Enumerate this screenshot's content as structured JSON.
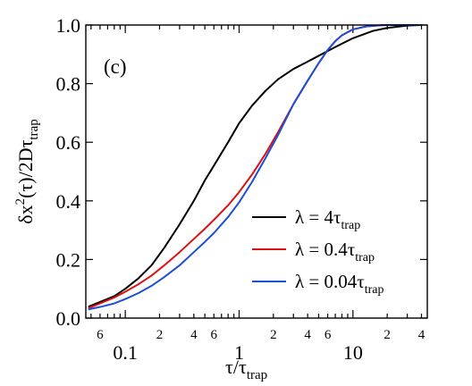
{
  "chart_data": {
    "type": "line",
    "x_scale": "log",
    "xlim": [
      0.045,
      45
    ],
    "ylim": [
      0,
      1.0
    ],
    "panel_label": "(c)",
    "xlabel": {
      "base": "τ",
      "sep": "/",
      "main": "τ",
      "sub": "trap"
    },
    "ylabel": {
      "pre": "δx",
      "sup": "2",
      "mid": "(τ)/2Dτ",
      "sub": "trap"
    },
    "y_ticks": [
      {
        "value": 0.0,
        "label": "0.0"
      },
      {
        "value": 0.2,
        "label": "0.2"
      },
      {
        "value": 0.4,
        "label": "0.4"
      },
      {
        "value": 0.6,
        "label": "0.6"
      },
      {
        "value": 0.8,
        "label": "0.8"
      },
      {
        "value": 1.0,
        "label": "1.0"
      }
    ],
    "x_major_ticks": [
      {
        "value": 0.1,
        "label": "0.1"
      },
      {
        "value": 1,
        "label": "1"
      },
      {
        "value": 10,
        "label": "10"
      }
    ],
    "x_minor_ticks": [
      {
        "value": 0.05,
        "label": ""
      },
      {
        "value": 0.06,
        "label": "6"
      },
      {
        "value": 0.07,
        "label": ""
      },
      {
        "value": 0.08,
        "label": ""
      },
      {
        "value": 0.09,
        "label": ""
      },
      {
        "value": 0.2,
        "label": "2"
      },
      {
        "value": 0.3,
        "label": ""
      },
      {
        "value": 0.4,
        "label": "4"
      },
      {
        "value": 0.5,
        "label": ""
      },
      {
        "value": 0.6,
        "label": "6"
      },
      {
        "value": 0.7,
        "label": ""
      },
      {
        "value": 0.8,
        "label": ""
      },
      {
        "value": 0.9,
        "label": ""
      },
      {
        "value": 2,
        "label": "2"
      },
      {
        "value": 3,
        "label": ""
      },
      {
        "value": 4,
        "label": "4"
      },
      {
        "value": 5,
        "label": ""
      },
      {
        "value": 6,
        "label": "6"
      },
      {
        "value": 7,
        "label": ""
      },
      {
        "value": 8,
        "label": ""
      },
      {
        "value": 9,
        "label": ""
      },
      {
        "value": 20,
        "label": "2"
      },
      {
        "value": 30,
        "label": ""
      },
      {
        "value": 40,
        "label": "4"
      }
    ],
    "legend": {
      "placement": "bottom-right"
    },
    "series": [
      {
        "name": "λ = 4τtrap",
        "label_main": "λ = 4τ",
        "label_sub": "trap",
        "color": "#000000",
        "x": [
          0.048,
          0.06,
          0.08,
          0.1,
          0.13,
          0.17,
          0.22,
          0.3,
          0.4,
          0.5,
          0.6,
          0.8,
          1.0,
          1.3,
          1.7,
          2.2,
          3.0,
          4.0,
          5.0,
          7.0,
          10.0,
          15.0,
          20.0,
          30.0,
          40.0
        ],
        "y": [
          0.04,
          0.055,
          0.075,
          0.1,
          0.135,
          0.18,
          0.24,
          0.32,
          0.4,
          0.47,
          0.52,
          0.6,
          0.665,
          0.725,
          0.775,
          0.815,
          0.85,
          0.875,
          0.895,
          0.925,
          0.955,
          0.98,
          0.99,
          0.998,
          1.0
        ]
      },
      {
        "name": "λ = 0.4τtrap",
        "label_main": "λ = 0.4τ",
        "label_sub": "trap",
        "color": "#dd1111",
        "x": [
          0.048,
          0.06,
          0.08,
          0.1,
          0.13,
          0.17,
          0.22,
          0.3,
          0.4,
          0.5,
          0.6,
          0.8,
          1.0,
          1.3,
          1.7,
          2.2,
          3.0,
          4.0,
          5.0,
          6.0,
          7.0,
          8.0,
          10.0,
          13.0,
          17.0,
          20.0,
          30.0,
          40.0
        ],
        "y": [
          0.035,
          0.05,
          0.07,
          0.09,
          0.115,
          0.145,
          0.18,
          0.225,
          0.27,
          0.305,
          0.335,
          0.385,
          0.43,
          0.49,
          0.56,
          0.635,
          0.73,
          0.81,
          0.87,
          0.915,
          0.945,
          0.965,
          0.985,
          0.995,
          0.999,
          1.0,
          1.0,
          1.0
        ]
      },
      {
        "name": "λ = 0.04τtrap",
        "label_main": "λ = 0.04τ",
        "label_sub": "trap",
        "color": "#1a4fd8",
        "x": [
          0.048,
          0.06,
          0.08,
          0.1,
          0.13,
          0.17,
          0.22,
          0.3,
          0.4,
          0.5,
          0.6,
          0.8,
          1.0,
          1.3,
          1.7,
          2.2,
          3.0,
          4.0,
          5.0,
          6.0,
          7.0,
          8.0,
          10.0,
          13.0,
          17.0,
          20.0,
          30.0,
          40.0
        ],
        "y": [
          0.03,
          0.038,
          0.05,
          0.065,
          0.085,
          0.11,
          0.14,
          0.18,
          0.225,
          0.26,
          0.29,
          0.345,
          0.395,
          0.465,
          0.545,
          0.625,
          0.73,
          0.81,
          0.87,
          0.915,
          0.945,
          0.965,
          0.985,
          0.995,
          0.999,
          1.0,
          1.0,
          1.0
        ]
      }
    ]
  }
}
